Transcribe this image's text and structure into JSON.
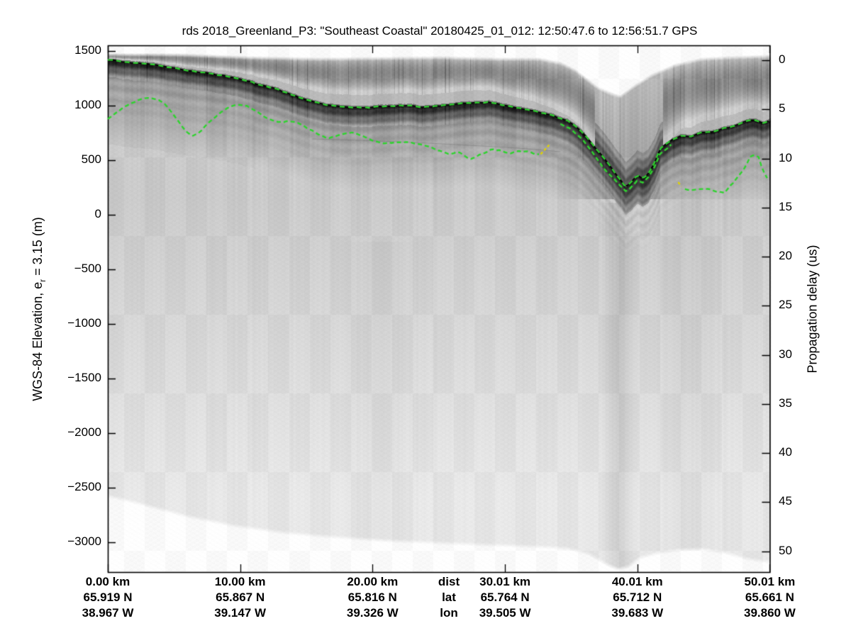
{
  "title": "rds 2018_Greenland_P3: \"Southeast Coastal\"  20180425_01_012: 12:50:47.6 to 12:56:51.7 GPS",
  "left_axis": {
    "label_prefix": "WGS-84 Elevation, e",
    "label_sub": "r",
    "label_suffix": " = 3.15 (m)",
    "tick_labels": [
      "1500",
      "1000",
      "500",
      "0",
      "−500",
      "−1000",
      "−1500",
      "−2000",
      "−2500",
      "−3000"
    ],
    "tick_values": [
      1500,
      1000,
      500,
      0,
      -500,
      -1000,
      -1500,
      -2000,
      -2500,
      -3000
    ]
  },
  "right_axis": {
    "label": "Propagation delay (us)",
    "tick_labels": [
      "0",
      "5",
      "10",
      "15",
      "20",
      "25",
      "30",
      "35",
      "40",
      "45",
      "50"
    ],
    "tick_values": [
      0,
      5,
      10,
      15,
      20,
      25,
      30,
      35,
      40,
      45,
      50
    ]
  },
  "bottom_axis": {
    "legend": {
      "dist": "dist",
      "lat": "lat",
      "lon": "lon"
    },
    "columns": [
      {
        "dist": "0.00 km",
        "lat": "65.919 N",
        "lon": "38.967 W",
        "km": 0.0
      },
      {
        "dist": "10.00 km",
        "lat": "65.867 N",
        "lon": "39.147 W",
        "km": 10.0
      },
      {
        "dist": "20.00 km",
        "lat": "65.816 N",
        "lon": "39.326 W",
        "km": 20.0
      },
      {
        "dist": "30.01 km",
        "lat": "65.764 N",
        "lon": "39.505 W",
        "km": 30.01
      },
      {
        "dist": "40.01 km",
        "lat": "65.712 N",
        "lon": "39.683 W",
        "km": 40.01
      },
      {
        "dist": "50.01 km",
        "lat": "65.661 N",
        "lon": "39.860 W",
        "km": 50.01
      }
    ]
  },
  "chart_data": {
    "type": "heatmap",
    "subtype": "radar-echogram",
    "title": "rds 2018_Greenland_P3: \"Southeast Coastal\"  20180425_01_012: 12:50:47.6 to 12:56:51.7 GPS",
    "ylabel_left": "WGS-84 Elevation, e_r = 3.15 (m)",
    "ylabel_right": "Propagation delay (us)",
    "xlabel_rows": [
      "dist",
      "lat",
      "lon"
    ],
    "grid": false,
    "x_axis": {
      "range_km": [
        0,
        50.01
      ],
      "ticks_km": [
        0,
        10.0,
        20.0,
        30.01,
        40.01,
        50.01
      ]
    },
    "y_left": {
      "range_m": [
        -3273,
        1552
      ]
    },
    "y_right": {
      "range_us": [
        -1.52,
        52.13
      ]
    },
    "colors": {
      "pick_green": "#2fd32f",
      "pick_yellow": "#e0d400",
      "surface_line": "#000000"
    },
    "series": [
      {
        "name": "surface-pick",
        "color": "#2fd32f",
        "style": "dashed",
        "points_km_m": [
          [
            0,
            1422
          ],
          [
            1.5,
            1396
          ],
          [
            3.1,
            1383
          ],
          [
            4.7,
            1351
          ],
          [
            6.3,
            1318
          ],
          [
            7.9,
            1292
          ],
          [
            9.5,
            1260
          ],
          [
            11.1,
            1208
          ],
          [
            12.8,
            1149
          ],
          [
            14.4,
            1078
          ],
          [
            16,
            1019
          ],
          [
            17.6,
            993
          ],
          [
            19.2,
            981
          ],
          [
            20.8,
            993
          ],
          [
            22.4,
            1000
          ],
          [
            24,
            987
          ],
          [
            25.6,
            1006
          ],
          [
            27.2,
            1026
          ],
          [
            28.8,
            1032
          ],
          [
            30.4,
            993
          ],
          [
            32,
            955
          ],
          [
            33.6,
            909
          ],
          [
            34.7,
            864
          ],
          [
            35.5,
            799
          ],
          [
            36.3,
            695
          ],
          [
            37.1,
            578
          ],
          [
            37.8,
            474
          ],
          [
            38.5,
            357
          ],
          [
            39.1,
            253
          ],
          [
            39.5,
            292
          ],
          [
            40,
            364
          ],
          [
            40.4,
            338
          ],
          [
            40.8,
            370
          ],
          [
            41.3,
            474
          ],
          [
            41.7,
            604
          ],
          [
            42.1,
            643
          ],
          [
            42.6,
            688
          ],
          [
            43.3,
            727
          ],
          [
            44,
            714
          ],
          [
            44.8,
            753
          ],
          [
            45.6,
            760
          ],
          [
            46.4,
            786
          ],
          [
            47.2,
            812
          ],
          [
            48,
            851
          ],
          [
            48.8,
            870
          ],
          [
            49.5,
            844
          ],
          [
            50.01,
            864
          ]
        ]
      },
      {
        "name": "bed-pick-left",
        "color": "#2fd32f",
        "style": "dashed",
        "points_km_m": [
          [
            0,
            877
          ],
          [
            0.7,
            942
          ],
          [
            1.5,
            1007
          ],
          [
            2.3,
            1052
          ],
          [
            3.1,
            1071
          ],
          [
            3.8,
            1052
          ],
          [
            4.3,
            1013
          ],
          [
            4.8,
            942
          ],
          [
            5.4,
            851
          ],
          [
            5.9,
            766
          ],
          [
            6.4,
            721
          ],
          [
            7,
            766
          ],
          [
            7.7,
            851
          ],
          [
            8.4,
            922
          ],
          [
            9.1,
            981
          ],
          [
            9.8,
            1013
          ],
          [
            10.5,
            994
          ],
          [
            11.3,
            942
          ],
          [
            11.9,
            890
          ],
          [
            12.8,
            851
          ],
          [
            13.6,
            857
          ],
          [
            14.4,
            844
          ],
          [
            15.2,
            786
          ],
          [
            16,
            734
          ],
          [
            16.6,
            701
          ],
          [
            17.3,
            721
          ],
          [
            18,
            747
          ],
          [
            18.6,
            753
          ],
          [
            19.3,
            721
          ],
          [
            20,
            682
          ],
          [
            20.8,
            656
          ],
          [
            21.6,
            662
          ],
          [
            22.4,
            669
          ],
          [
            23.2,
            656
          ],
          [
            24,
            636
          ],
          [
            24.6,
            610
          ],
          [
            25.3,
            571
          ],
          [
            25.8,
            552
          ],
          [
            26.4,
            578
          ],
          [
            26.9,
            539
          ],
          [
            27.4,
            513
          ],
          [
            28,
            545
          ],
          [
            28.6,
            578
          ],
          [
            29.1,
            597
          ],
          [
            29.8,
            584
          ],
          [
            30.4,
            565
          ],
          [
            31.1,
            584
          ],
          [
            31.7,
            578
          ],
          [
            32.3,
            558
          ],
          [
            32.7,
            552
          ]
        ]
      },
      {
        "name": "bed-pick-trough",
        "color": "#2fd32f",
        "style": "dashed",
        "points_km_m": [
          [
            34.2,
            831
          ],
          [
            35,
            786
          ],
          [
            35.8,
            695
          ],
          [
            36.6,
            578
          ],
          [
            37.4,
            435
          ],
          [
            38.2,
            331
          ],
          [
            38.7,
            266
          ],
          [
            39.2,
            201
          ],
          [
            39.5,
            247
          ],
          [
            40,
            318
          ],
          [
            40.4,
            292
          ],
          [
            40.8,
            331
          ],
          [
            41.3,
            435
          ],
          [
            41.7,
            558
          ],
          [
            42.2,
            604
          ],
          [
            42.6,
            643
          ]
        ]
      },
      {
        "name": "bed-pick-right",
        "color": "#2fd32f",
        "style": "dashed",
        "points_km_m": [
          [
            43.6,
            234
          ],
          [
            44.1,
            227
          ],
          [
            44.8,
            234
          ],
          [
            45.4,
            234
          ],
          [
            46.1,
            208
          ],
          [
            46.6,
            208
          ],
          [
            47.2,
            286
          ],
          [
            47.7,
            364
          ],
          [
            48.2,
            448
          ],
          [
            48.5,
            532
          ],
          [
            48.9,
            552
          ],
          [
            49.2,
            532
          ],
          [
            49.4,
            441
          ],
          [
            49.7,
            364
          ],
          [
            50,
            299
          ]
        ]
      },
      {
        "name": "pick-gap-yellow-1",
        "color": "#e0d400",
        "style": "dashed",
        "points_km_m": [
          [
            32.7,
            552
          ],
          [
            33.1,
            610
          ],
          [
            33.5,
            662
          ]
        ]
      },
      {
        "name": "pick-gap-yellow-2",
        "color": "#e0d400",
        "style": "dashed",
        "points_km_m": [
          [
            43.1,
            299
          ],
          [
            43.4,
            240
          ]
        ]
      }
    ],
    "image_profiles": {
      "clutter_top_km_m": [
        [
          0,
          1487
        ],
        [
          5.3,
          1487
        ],
        [
          10.6,
          1461
        ],
        [
          16,
          1448
        ],
        [
          21.3,
          1455
        ],
        [
          25.1,
          1461
        ],
        [
          29.4,
          1448
        ],
        [
          32.6,
          1448
        ],
        [
          34.2,
          1409
        ],
        [
          35.3,
          1344
        ],
        [
          37,
          1182
        ],
        [
          38,
          1130
        ],
        [
          38.7,
          1104
        ],
        [
          39.8,
          1201
        ],
        [
          41.1,
          1299
        ],
        [
          42.8,
          1390
        ],
        [
          44.9,
          1448
        ],
        [
          47,
          1461
        ],
        [
          50.01,
          1474
        ]
      ],
      "data_bottom_km_m": [
        [
          0,
          -2578
        ],
        [
          2.6,
          -2656
        ],
        [
          5.8,
          -2760
        ],
        [
          9.5,
          -2851
        ],
        [
          13.3,
          -2916
        ],
        [
          17,
          -2955
        ],
        [
          20.8,
          -2987
        ],
        [
          24.5,
          -3006
        ],
        [
          28.3,
          -3026
        ],
        [
          31.5,
          -3039
        ],
        [
          34.7,
          -3058
        ],
        [
          36.3,
          -3110
        ],
        [
          37.7,
          -3208
        ],
        [
          38.5,
          -3247
        ],
        [
          39.3,
          -3227
        ],
        [
          40.1,
          -3149
        ],
        [
          41.7,
          -3097
        ],
        [
          43.3,
          -3071
        ],
        [
          44.9,
          -3065
        ],
        [
          46.5,
          -3097
        ],
        [
          48.1,
          -3149
        ],
        [
          50.01,
          -3188
        ]
      ]
    }
  }
}
